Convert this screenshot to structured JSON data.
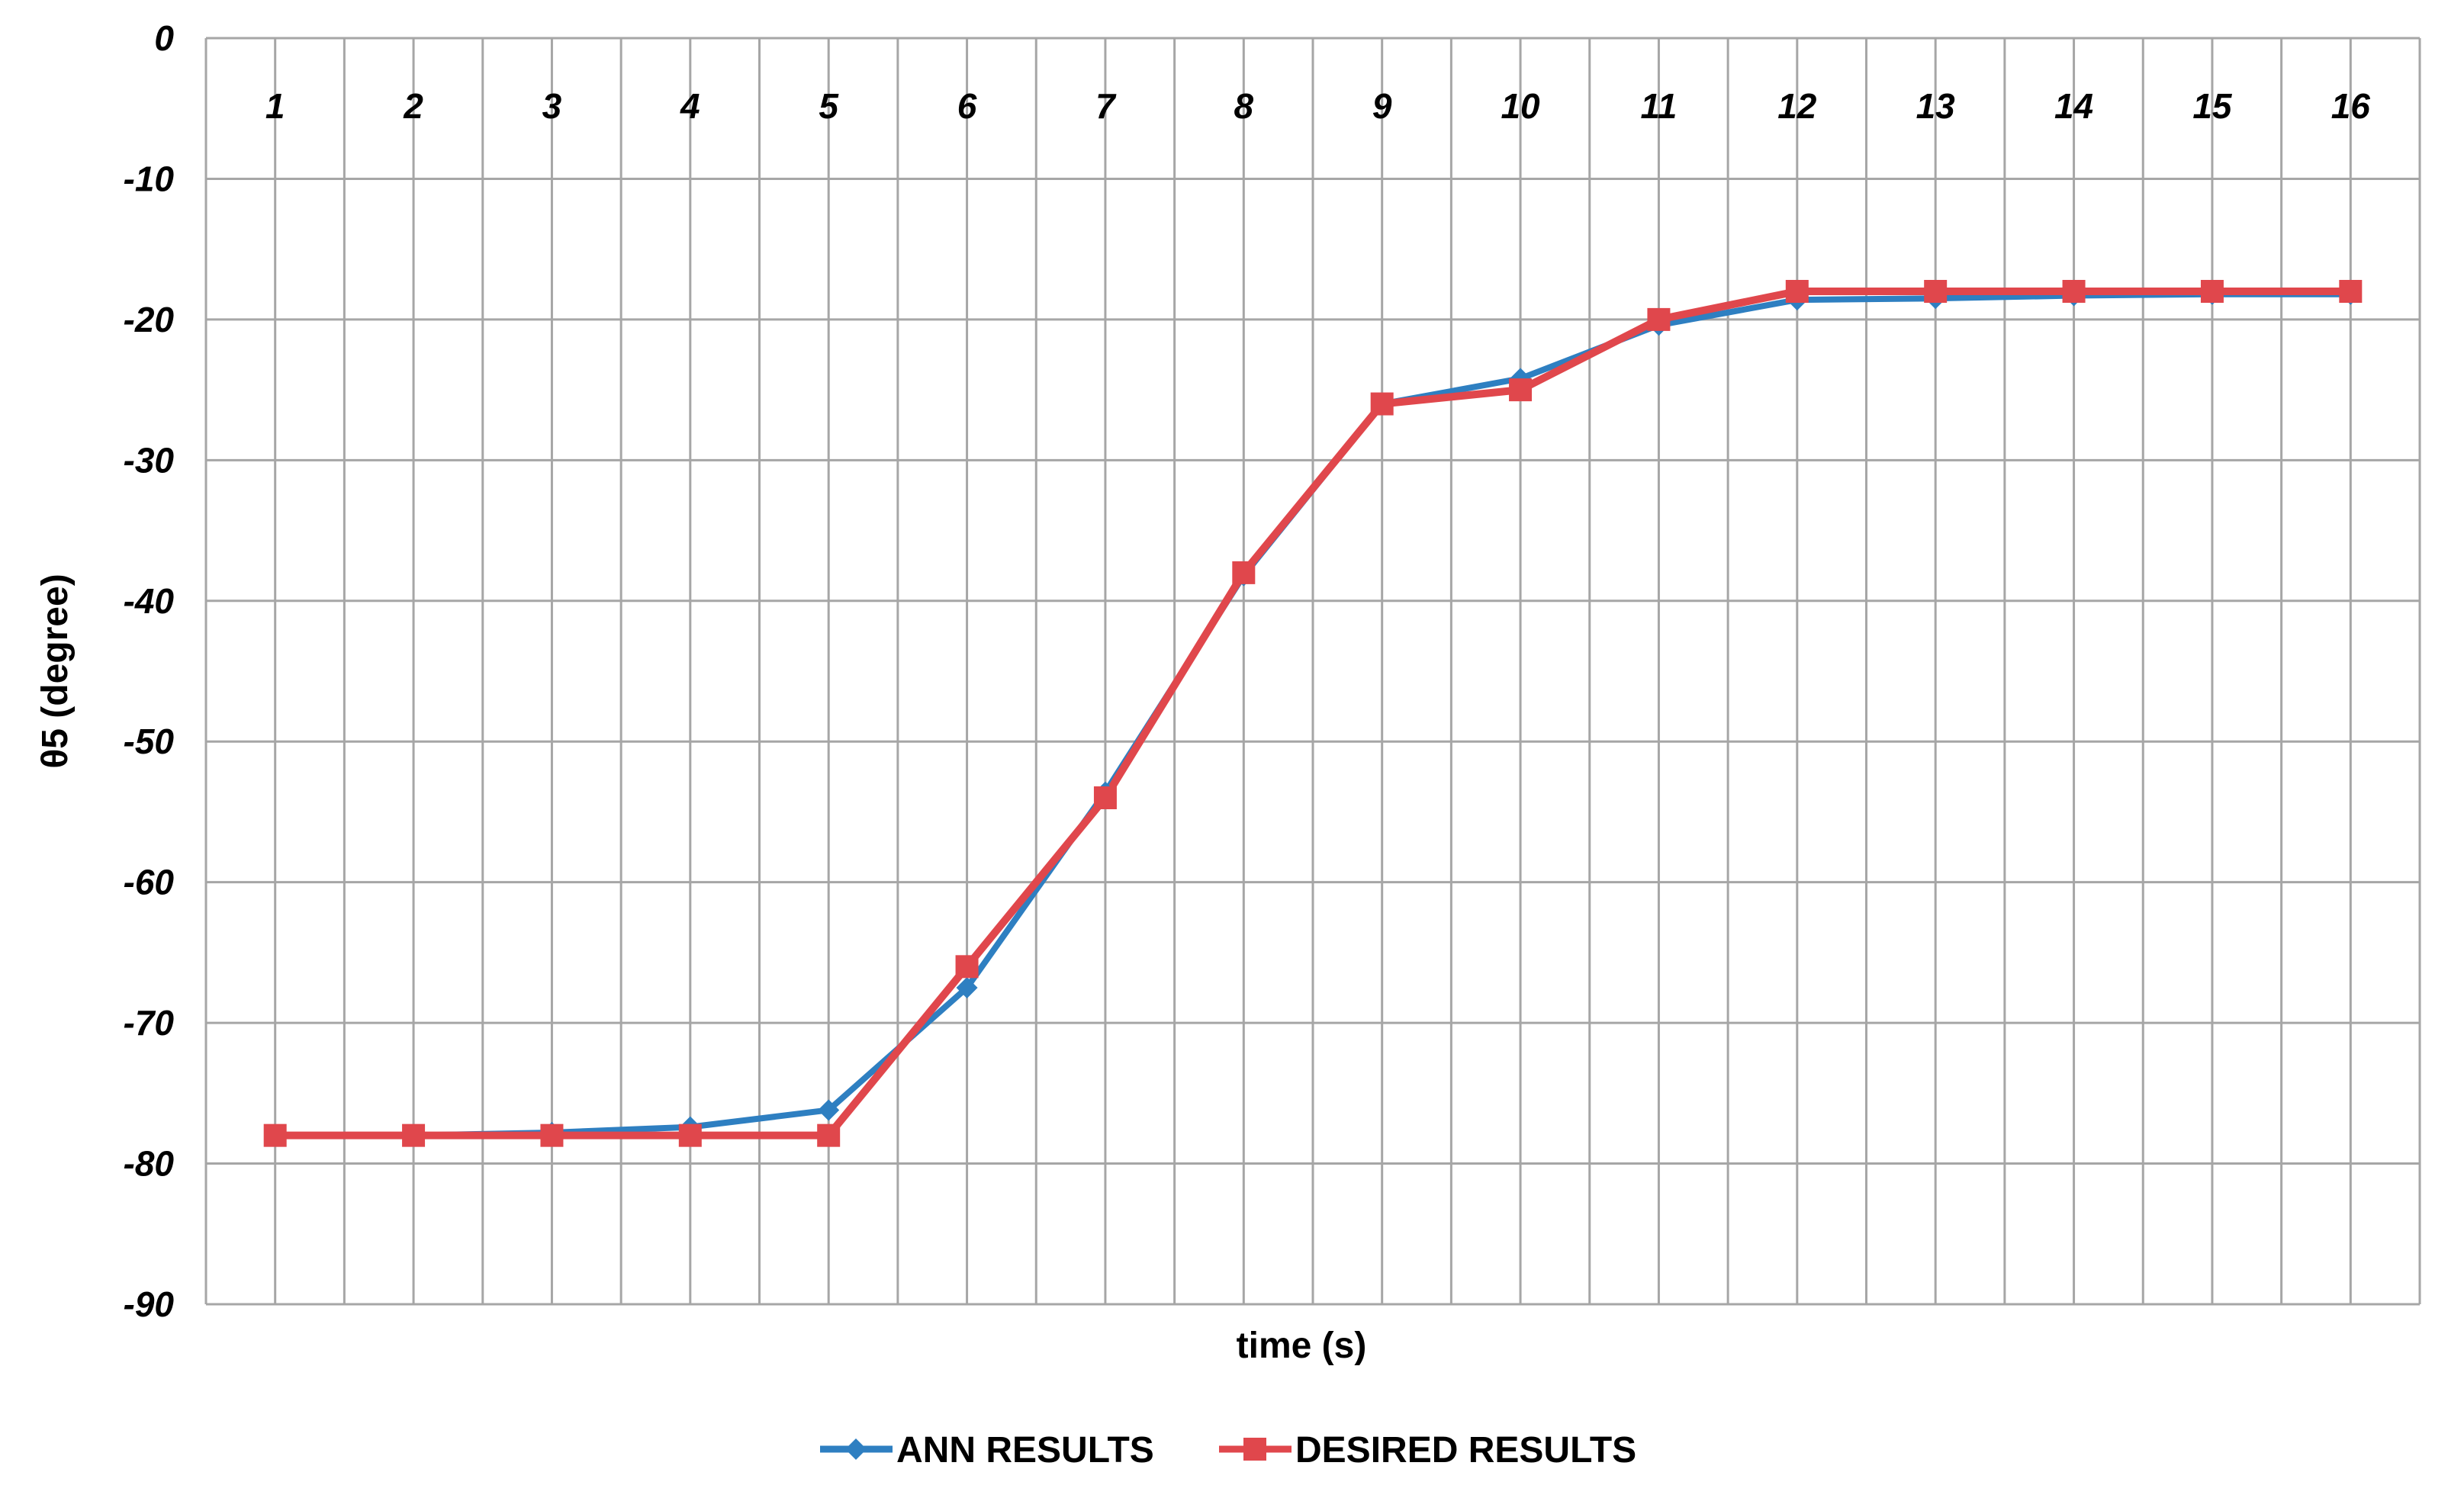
{
  "chart_data": {
    "type": "line",
    "title": "",
    "xlabel": "time (s)",
    "ylabel": "θ5 (degree)",
    "x": [
      1,
      2,
      3,
      4,
      5,
      6,
      7,
      8,
      9,
      10,
      11,
      12,
      13,
      14,
      15,
      16
    ],
    "x_tick_labels": [
      "1",
      "2",
      "3",
      "4",
      "5",
      "6",
      "7",
      "8",
      "9",
      "10",
      "11",
      "12",
      "13",
      "14",
      "15",
      "16"
    ],
    "y_ticks": [
      0,
      -10,
      -20,
      -30,
      -40,
      -50,
      -60,
      -70,
      -80,
      -90
    ],
    "y_tick_labels": [
      "0",
      "-10",
      "-20",
      "-30",
      "-40",
      "-50",
      "-60",
      "-70",
      "-80",
      "-90"
    ],
    "ylim": [
      -90,
      0
    ],
    "grid": true,
    "legend_position": "bottom",
    "series": [
      {
        "name": "ANN RESULTS",
        "color": "#2e7fc1",
        "marker": "diamond",
        "values": [
          -78,
          -78,
          -77.8,
          -77.4,
          -76.2,
          -67.5,
          -53.6,
          -38.2,
          -26.0,
          -24.2,
          -20.4,
          -18.6,
          -18.5,
          -18.3,
          -18.2,
          -18.2
        ]
      },
      {
        "name": "DESIRED RESULTS",
        "color": "#e0474c",
        "marker": "square",
        "values": [
          -78,
          -78,
          -78,
          -78,
          -78,
          -66,
          -54,
          -38,
          -26,
          -25,
          -20,
          -18,
          -18,
          -18,
          -18,
          -18
        ]
      }
    ]
  }
}
